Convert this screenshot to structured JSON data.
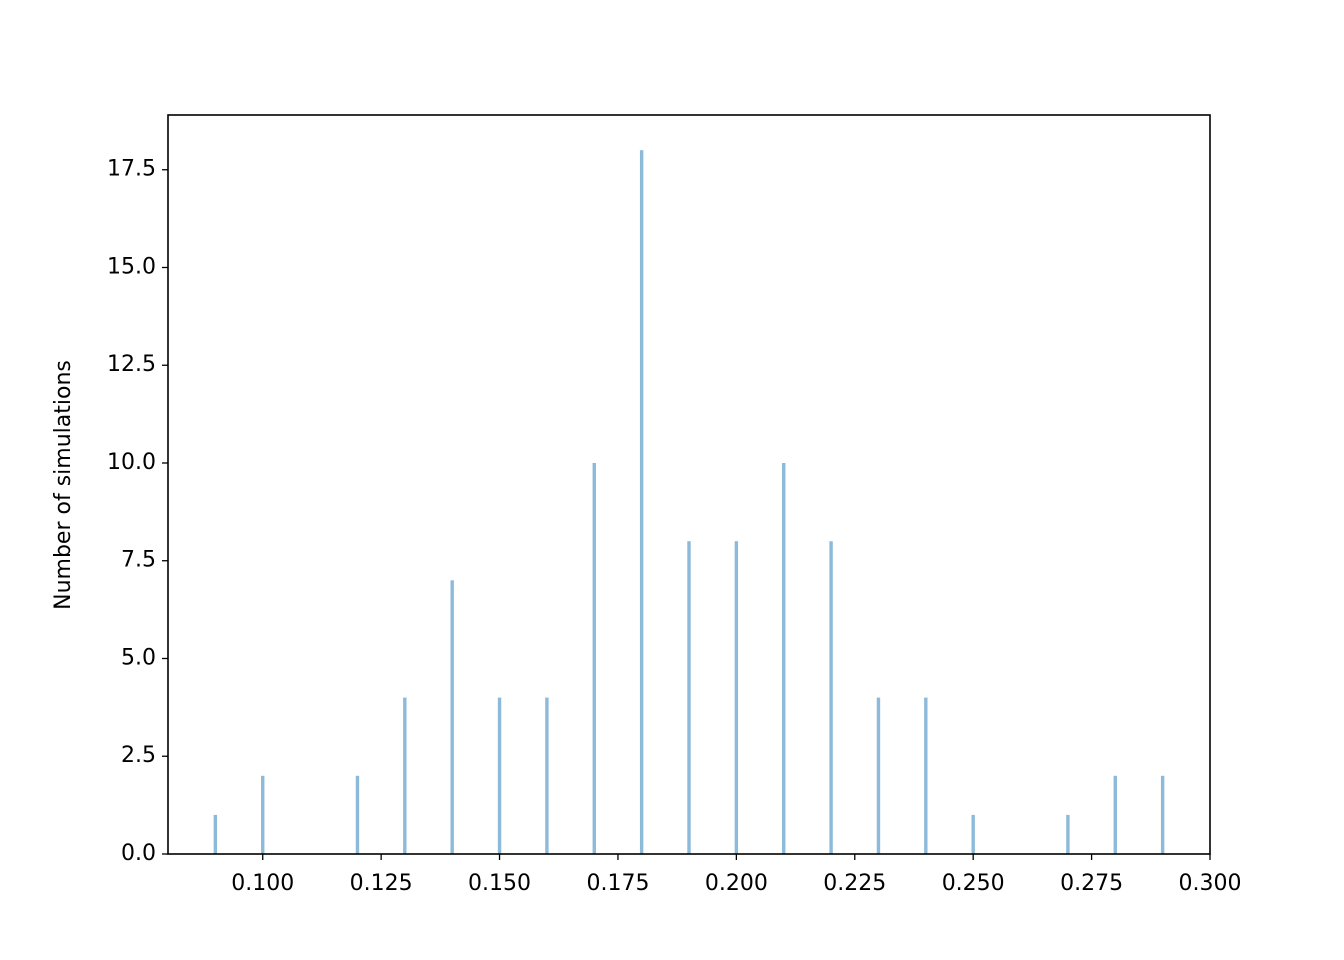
{
  "chart_data": {
    "type": "bar",
    "y_label": "Number of simulations",
    "x": [
      0.09,
      0.1,
      0.12,
      0.13,
      0.14,
      0.15,
      0.16,
      0.17,
      0.18,
      0.19,
      0.2,
      0.21,
      0.22,
      0.23,
      0.24,
      0.25,
      0.27,
      0.28,
      0.29
    ],
    "values": [
      1,
      2,
      2,
      4,
      7,
      4,
      4,
      10,
      18,
      8,
      8,
      10,
      8,
      4,
      4,
      1,
      1,
      2,
      2
    ],
    "color": "#8cbad8",
    "xlim": [
      0.08,
      0.3
    ],
    "xticks": [
      {
        "value": 0.1,
        "label": "0.100"
      },
      {
        "value": 0.125,
        "label": "0.125"
      },
      {
        "value": 0.15,
        "label": "0.150"
      },
      {
        "value": 0.175,
        "label": "0.175"
      },
      {
        "value": 0.2,
        "label": "0.200"
      },
      {
        "value": 0.225,
        "label": "0.225"
      },
      {
        "value": 0.25,
        "label": "0.250"
      },
      {
        "value": 0.275,
        "label": "0.275"
      },
      {
        "value": 0.3,
        "label": "0.300"
      }
    ],
    "ylim": [
      0,
      18.9
    ],
    "yticks": [
      {
        "value": 0,
        "label": "0.0"
      },
      {
        "value": 2.5,
        "label": "2.5"
      },
      {
        "value": 5,
        "label": "5.0"
      },
      {
        "value": 7.5,
        "label": "7.5"
      },
      {
        "value": 10,
        "label": "10.0"
      },
      {
        "value": 12.5,
        "label": "12.5"
      },
      {
        "value": 15,
        "label": "15.0"
      },
      {
        "value": 17.5,
        "label": "17.5"
      }
    ],
    "grid": false
  }
}
